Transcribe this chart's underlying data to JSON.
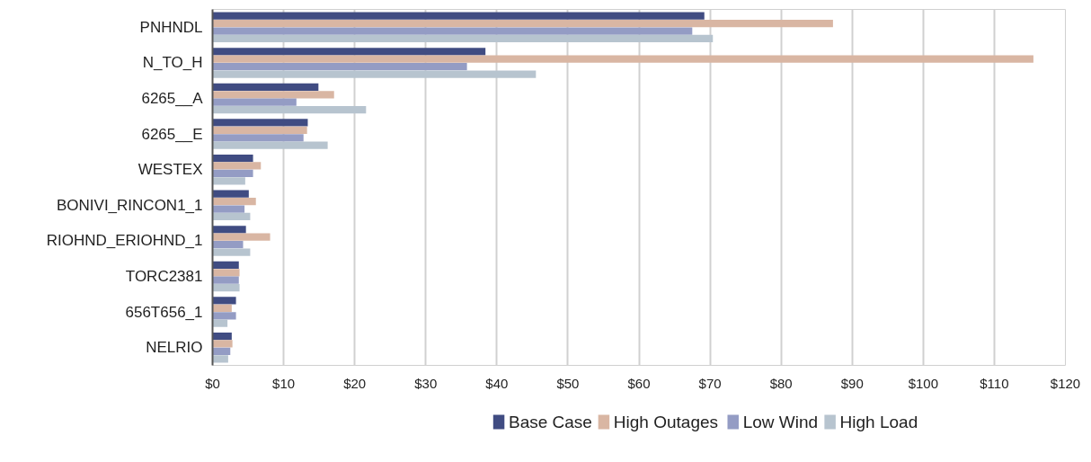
{
  "chart_data": {
    "type": "bar",
    "orientation": "horizontal",
    "categories": [
      "PNHNDL",
      "N_TO_H",
      "6265__A",
      "6265__E",
      "WESTEX",
      "BONIVI_RINCON1_1",
      "RIOHND_ERIOHND_1",
      "TORC2381",
      "656T656_1",
      "NELRIO"
    ],
    "series": [
      {
        "name": "Base Case",
        "color": "#404c82",
        "values": [
          69.2,
          38.4,
          14.9,
          13.4,
          5.7,
          5.1,
          4.7,
          3.7,
          3.3,
          2.7
        ]
      },
      {
        "name": "High Outages",
        "color": "#d9b6a3",
        "values": [
          87.3,
          115.5,
          17.1,
          13.3,
          6.8,
          6.1,
          8.1,
          3.8,
          2.7,
          2.8
        ]
      },
      {
        "name": "Low Wind",
        "color": "#949cc4",
        "values": [
          67.5,
          35.8,
          11.8,
          12.8,
          5.7,
          4.5,
          4.3,
          3.7,
          3.3,
          2.5
        ]
      },
      {
        "name": "High Load",
        "color": "#b7c4cf",
        "values": [
          70.4,
          45.5,
          21.6,
          16.2,
          4.6,
          5.3,
          5.3,
          3.8,
          2.1,
          2.2
        ]
      }
    ],
    "xlim": [
      0,
      120
    ],
    "xticks": [
      {
        "value": 0,
        "label": "$0"
      },
      {
        "value": 10,
        "label": "$10"
      },
      {
        "value": 20,
        "label": "$20"
      },
      {
        "value": 30,
        "label": "$30"
      },
      {
        "value": 40,
        "label": "$40"
      },
      {
        "value": 50,
        "label": "$50"
      },
      {
        "value": 60,
        "label": "$60"
      },
      {
        "value": 70,
        "label": "$70"
      },
      {
        "value": 80,
        "label": "$80"
      },
      {
        "value": 90,
        "label": "$90"
      },
      {
        "value": 100,
        "label": "$100"
      },
      {
        "value": 110,
        "label": "$110"
      },
      {
        "value": 120,
        "label": "$120"
      }
    ],
    "grid": "x",
    "legend": "bottom"
  }
}
